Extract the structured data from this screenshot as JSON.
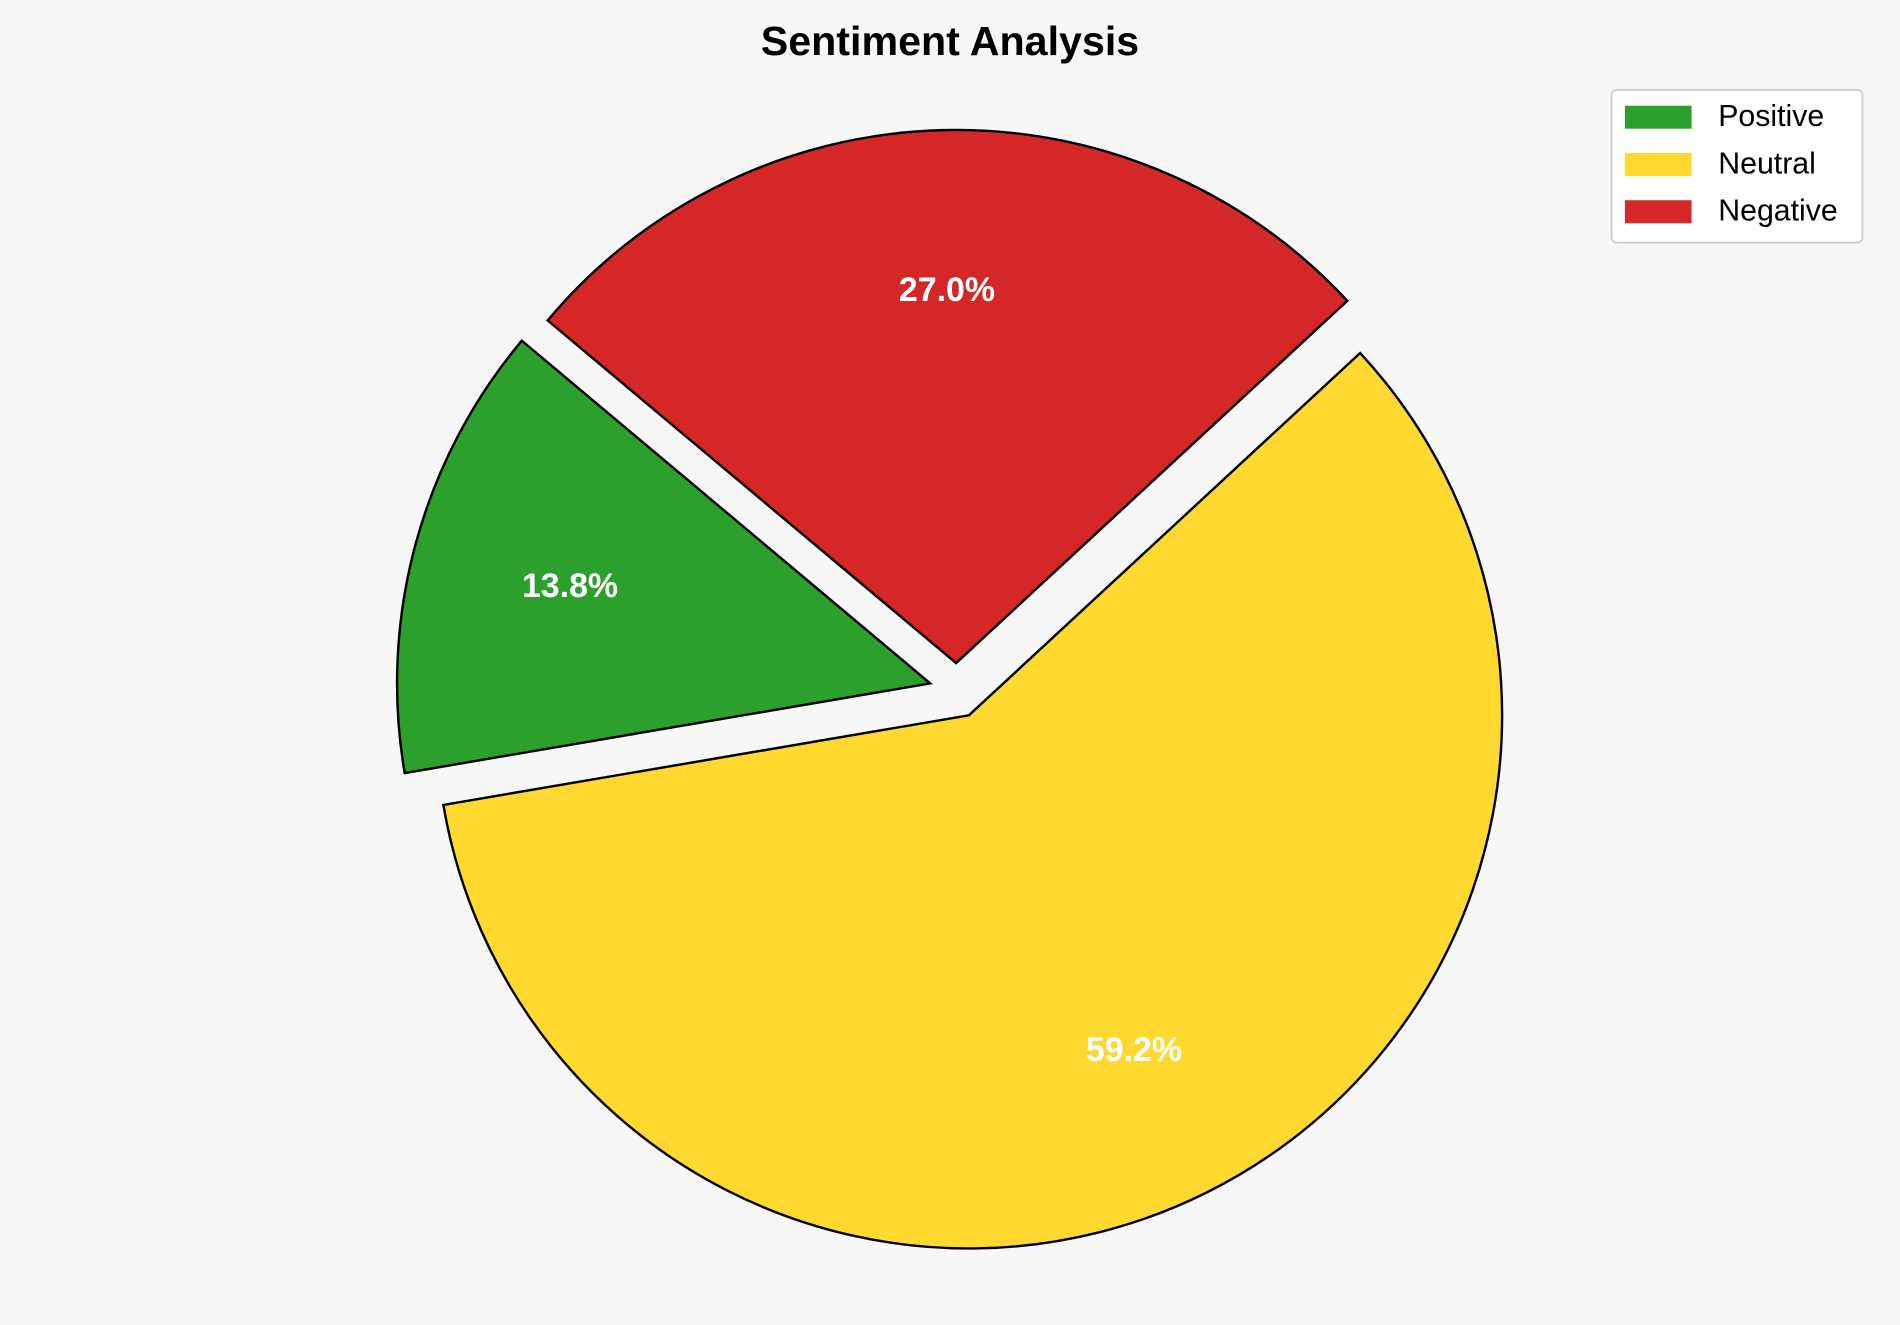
{
  "chart_data": {
    "type": "pie",
    "title": "Sentiment Analysis",
    "categories": [
      "Positive",
      "Neutral",
      "Negative"
    ],
    "values": [
      13.8,
      59.2,
      27.0
    ],
    "labels": [
      "13.8%",
      "59.2%",
      "27.0%"
    ],
    "colors": [
      "#2ca02c",
      "#ffd92f",
      "#d62728"
    ],
    "edge_color": "#000000",
    "label_color": "#ffffff",
    "start_angle": 140,
    "direction": "counterclockwise",
    "exploded": true,
    "legend": {
      "position": "top-right",
      "entries": [
        "Positive",
        "Neutral",
        "Negative"
      ]
    }
  }
}
